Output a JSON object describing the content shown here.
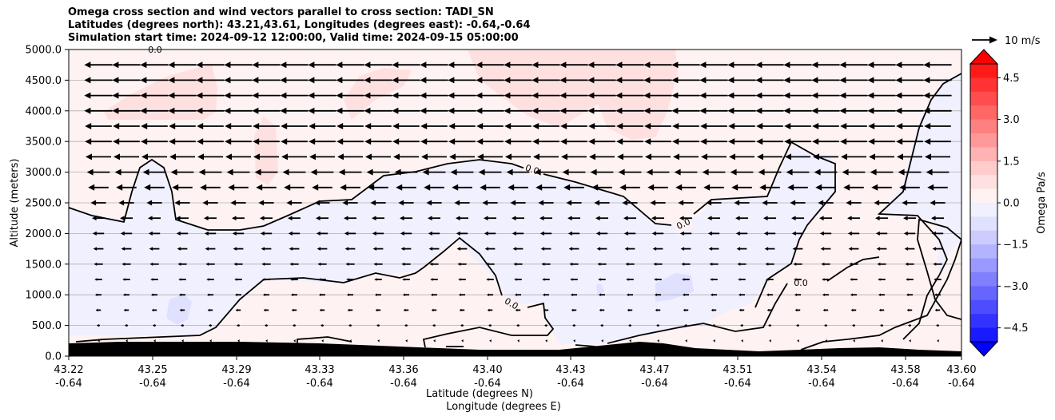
{
  "chart_data": {
    "type": "heatmap",
    "title": [
      "Omega cross section and wind vectors parallel to cross section: TADI_SN",
      "Latitudes (degrees north): 43.21,43.61, Longitudes (degrees east): -0.64,-0.64",
      "Simulation start time: 2024-09-12 12:00:00, Valid time: 2024-09-15 05:00:00"
    ],
    "xlabel": "Latitude (degrees N)",
    "xlabel2": "Longitude (degrees E)",
    "ylabel": "Altitude (meters)",
    "x_ticks": [
      {
        "lat": "43.22",
        "lon": "-0.64"
      },
      {
        "lat": "43.25",
        "lon": "-0.64"
      },
      {
        "lat": "43.29",
        "lon": "-0.64"
      },
      {
        "lat": "43.33",
        "lon": "-0.64"
      },
      {
        "lat": "43.36",
        "lon": "-0.64"
      },
      {
        "lat": "43.40",
        "lon": "-0.64"
      },
      {
        "lat": "43.43",
        "lon": "-0.64"
      },
      {
        "lat": "43.47",
        "lon": "-0.64"
      },
      {
        "lat": "43.51",
        "lon": "-0.64"
      },
      {
        "lat": "43.54",
        "lon": "-0.64"
      },
      {
        "lat": "43.58",
        "lon": "-0.64"
      },
      {
        "lat": "43.60",
        "lon": "-0.64"
      }
    ],
    "y_ticks": [
      "0.0",
      "500.0",
      "1000.0",
      "1500.0",
      "2000.0",
      "2500.0",
      "3000.0",
      "3500.0",
      "4000.0",
      "4500.0",
      "5000.0"
    ],
    "ylim": [
      0,
      5000
    ],
    "grid": true,
    "colorbar": {
      "label": "Omega Pa/s",
      "ticks": [
        "4.5",
        "3.0",
        "1.5",
        "0.0",
        "−1.5",
        "−3.0",
        "−4.5"
      ],
      "range": [
        -5,
        5
      ],
      "colors_positive": [
        "#ff1a1a",
        "#ff3333",
        "#ff4d4d",
        "#ff6666",
        "#ff8080",
        "#ff9999",
        "#ffb3b3",
        "#ffcccc",
        "#ffe0e0",
        "#fff2f2"
      ],
      "colors_negative": [
        "#f0f0ff",
        "#e0e0ff",
        "#ccccff",
        "#b3b3ff",
        "#9999ff",
        "#8080ff",
        "#6666ff",
        "#4d4dff",
        "#3333ff",
        "#1a1aff"
      ]
    },
    "quiver_key": {
      "label": "10 m/s",
      "value": 10
    },
    "contour_label": "0.0",
    "wind_rows": [
      {
        "alt": 4750,
        "speed": 11
      },
      {
        "alt": 4500,
        "speed": 11
      },
      {
        "alt": 4250,
        "speed": 11
      },
      {
        "alt": 4000,
        "speed": 11
      },
      {
        "alt": 3750,
        "speed": 10.5
      },
      {
        "alt": 3500,
        "speed": 10.5
      },
      {
        "alt": 3250,
        "speed": 10
      },
      {
        "alt": 3000,
        "speed": 9
      },
      {
        "alt": 2750,
        "speed": 8
      },
      {
        "alt": 2500,
        "speed": 6
      },
      {
        "alt": 2250,
        "speed": 5
      },
      {
        "alt": 2000,
        "speed": 4.5
      },
      {
        "alt": 1750,
        "speed": 4
      },
      {
        "alt": 1500,
        "speed": 3.5
      },
      {
        "alt": 1250,
        "speed": 3
      },
      {
        "alt": 1000,
        "speed": 2.5
      },
      {
        "alt": 750,
        "speed": 2
      },
      {
        "alt": 500,
        "speed": 1.2
      },
      {
        "alt": 250,
        "speed": 0.5
      }
    ]
  }
}
